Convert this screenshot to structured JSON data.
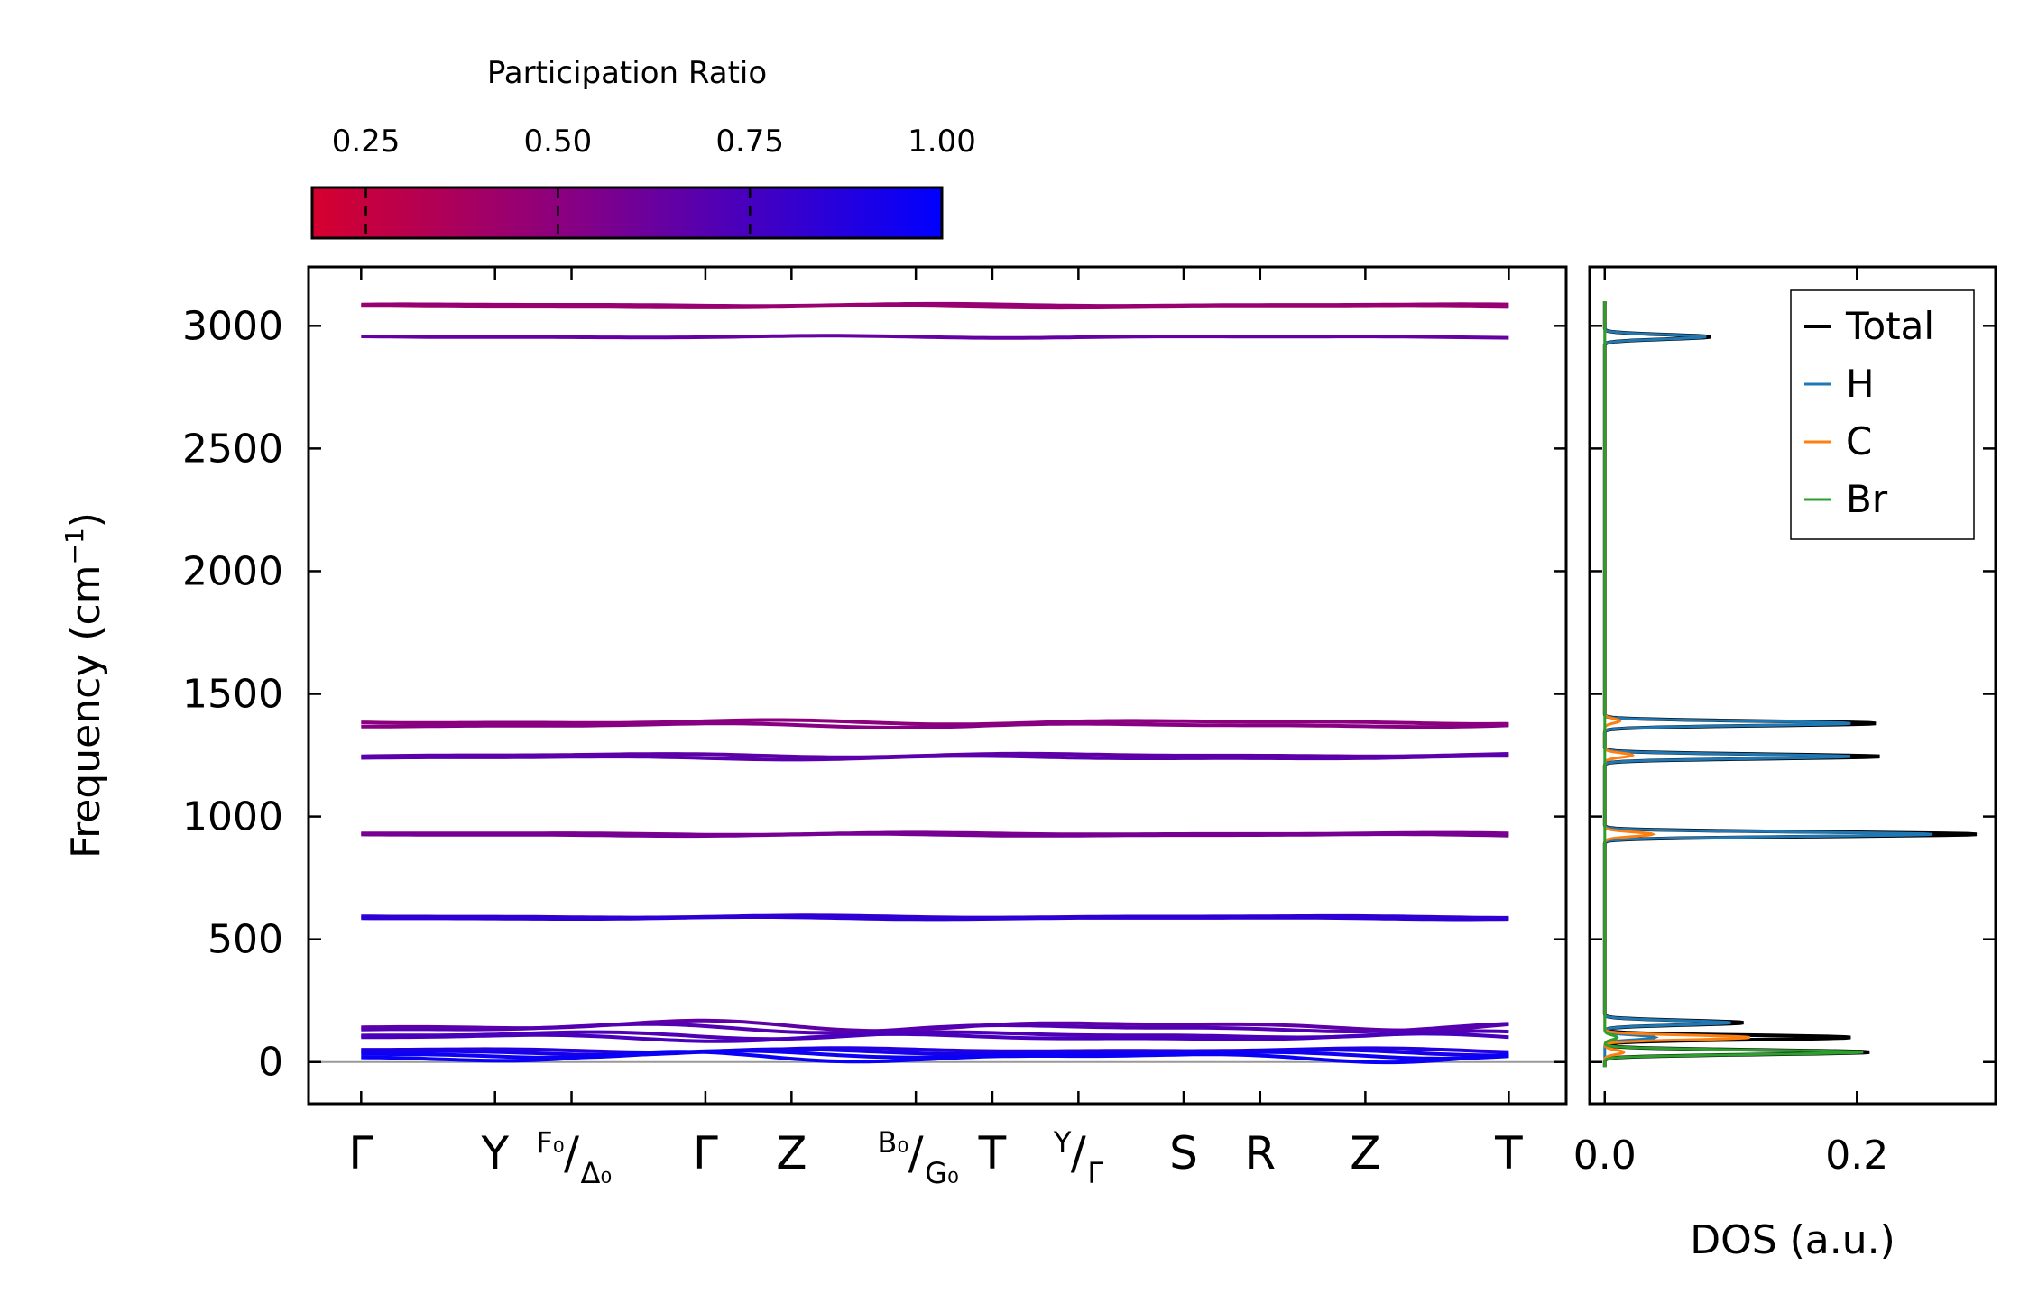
{
  "colorbar": {
    "title": "Participation Ratio",
    "ticks": [
      {
        "value": 0.25,
        "label": "0.25"
      },
      {
        "value": 0.5,
        "label": "0.50"
      },
      {
        "value": 0.75,
        "label": "0.75"
      },
      {
        "value": 1.0,
        "label": "1.00"
      }
    ],
    "range": [
      0.18,
      1.0
    ],
    "color_low": "#d6002e",
    "color_mid": "#8a0080",
    "color_high": "#0000ff"
  },
  "chart_data": [
    {
      "type": "line",
      "name": "phonon-band-structure",
      "ylabel": "Frequency (cm",
      "ylabel_sup": "−1",
      "ylabel_end": ")",
      "ylim": [
        -170,
        3240
      ],
      "yticks": [
        {
          "value": 0,
          "label": "0"
        },
        {
          "value": 500,
          "label": "500"
        },
        {
          "value": 1000,
          "label": "1000"
        },
        {
          "value": 1500,
          "label": "1500"
        },
        {
          "value": 2000,
          "label": "2000"
        },
        {
          "value": 2500,
          "label": "2500"
        },
        {
          "value": 3000,
          "label": "3000"
        }
      ],
      "xlim": [
        -0.55,
        12.6
      ],
      "xticks": [
        {
          "x": 0.0,
          "main": "Γ",
          "sup": "",
          "sub": ""
        },
        {
          "x": 1.4,
          "main": "Y",
          "sup": "",
          "sub": ""
        },
        {
          "x": 2.2,
          "main": "/",
          "sup": "F₀",
          "sub": "Δ₀"
        },
        {
          "x": 3.6,
          "main": "Γ",
          "sup": "",
          "sub": ""
        },
        {
          "x": 4.5,
          "main": "Z",
          "sup": "",
          "sub": ""
        },
        {
          "x": 5.8,
          "main": "/",
          "sup": "B₀",
          "sub": "G₀"
        },
        {
          "x": 6.6,
          "main": "T",
          "sup": "",
          "sub": ""
        },
        {
          "x": 7.5,
          "main": "/",
          "sup": "Y",
          "sub": "Γ"
        },
        {
          "x": 8.6,
          "main": "S",
          "sup": "",
          "sub": ""
        },
        {
          "x": 9.4,
          "main": "R",
          "sup": "",
          "sub": ""
        },
        {
          "x": 10.5,
          "main": "Z",
          "sup": "",
          "sub": ""
        },
        {
          "x": 12.0,
          "main": "T",
          "sup": "",
          "sub": ""
        }
      ],
      "bands": [
        {
          "freq": 3085,
          "pr": 0.46,
          "wobble": 3
        },
        {
          "freq": 3078,
          "pr": 0.44,
          "wobble": 3
        },
        {
          "freq": 2955,
          "pr": 0.64,
          "wobble": 3
        },
        {
          "freq": 1385,
          "pr": 0.5,
          "wobble": 6
        },
        {
          "freq": 1372,
          "pr": 0.52,
          "wobble": 6
        },
        {
          "freq": 1250,
          "pr": 0.66,
          "wobble": 5
        },
        {
          "freq": 1240,
          "pr": 0.68,
          "wobble": 5
        },
        {
          "freq": 930,
          "pr": 0.56,
          "wobble": 3
        },
        {
          "freq": 925,
          "pr": 0.58,
          "wobble": 3
        },
        {
          "freq": 592,
          "pr": 0.82,
          "wobble": 3
        },
        {
          "freq": 586,
          "pr": 0.84,
          "wobble": 3
        },
        {
          "freq": 148,
          "pr": 0.66,
          "wobble": 14
        },
        {
          "freq": 138,
          "pr": 0.7,
          "wobble": 12
        },
        {
          "freq": 110,
          "pr": 0.72,
          "wobble": 10
        },
        {
          "freq": 100,
          "pr": 0.74,
          "wobble": 10
        },
        {
          "freq": 48,
          "pr": 0.88,
          "wobble": 6
        },
        {
          "freq": 40,
          "pr": 0.92,
          "wobble": 8
        },
        {
          "freq": 30,
          "pr": 0.95,
          "wobble": 10
        },
        {
          "freq": 20,
          "pr": 0.97,
          "wobble": 14
        }
      ]
    },
    {
      "type": "line",
      "name": "phonon-dos",
      "xlabel": "DOS (a.u.)",
      "xlim": [
        -0.012,
        0.31
      ],
      "xticks": [
        {
          "value": 0.0,
          "label": "0.0"
        },
        {
          "value": 0.2,
          "label": "0.2"
        }
      ],
      "legend_position": "top-right",
      "series": [
        {
          "name": "Total",
          "color": "#000000",
          "peaks": [
            {
              "freq": 2955,
              "height": 0.083
            },
            {
              "freq": 1380,
              "height": 0.215
            },
            {
              "freq": 1245,
              "height": 0.218
            },
            {
              "freq": 928,
              "height": 0.295
            },
            {
              "freq": 160,
              "height": 0.11
            },
            {
              "freq": 100,
              "height": 0.195
            },
            {
              "freq": 40,
              "height": 0.21
            }
          ]
        },
        {
          "name": "H",
          "color": "#1f77b4",
          "peaks": [
            {
              "freq": 2955,
              "height": 0.08
            },
            {
              "freq": 1380,
              "height": 0.195
            },
            {
              "freq": 1245,
              "height": 0.195
            },
            {
              "freq": 928,
              "height": 0.26
            },
            {
              "freq": 160,
              "height": 0.1
            },
            {
              "freq": 100,
              "height": 0.04
            }
          ]
        },
        {
          "name": "C",
          "color": "#ff7f0e",
          "peaks": [
            {
              "freq": 1390,
              "height": 0.012
            },
            {
              "freq": 1250,
              "height": 0.022
            },
            {
              "freq": 928,
              "height": 0.038
            },
            {
              "freq": 100,
              "height": 0.115
            },
            {
              "freq": 40,
              "height": 0.015
            }
          ]
        },
        {
          "name": "Br",
          "color": "#2ca02c",
          "peaks": [
            {
              "freq": 100,
              "height": 0.01
            },
            {
              "freq": 40,
              "height": 0.205
            }
          ]
        }
      ]
    }
  ]
}
